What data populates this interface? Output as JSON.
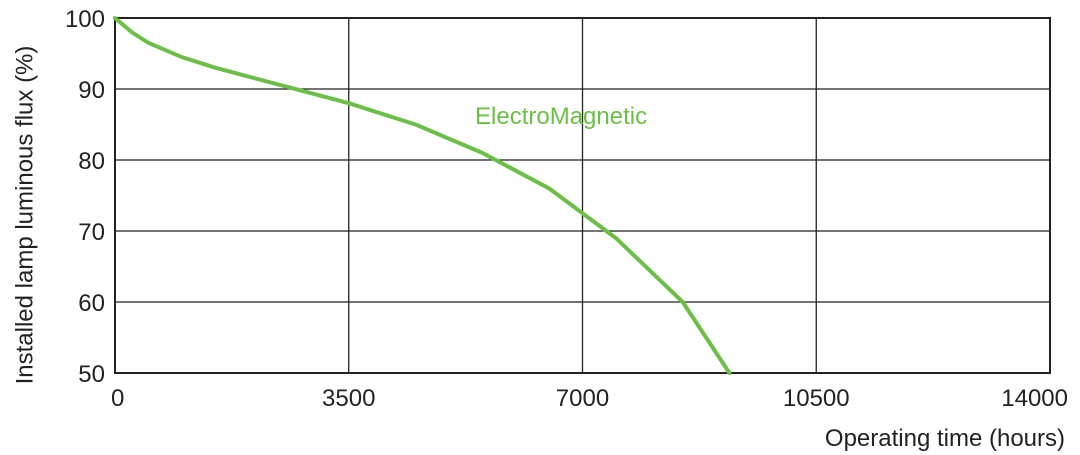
{
  "chart_data": {
    "type": "line",
    "xlabel": "Operating time (hours)",
    "ylabel": "Installed lamp luminous flux  (%)",
    "x": [
      0,
      250,
      500,
      1000,
      1500,
      2500,
      3500,
      4500,
      5500,
      6500,
      7500,
      8500,
      9200
    ],
    "series": [
      {
        "name": "ElectroMagnetic",
        "color": "#6cbf46",
        "values": [
          100,
          98,
          96.5,
          94.5,
          93,
          90.5,
          88,
          85,
          81,
          76,
          69,
          60,
          50
        ]
      }
    ],
    "xlim": [
      0,
      14000
    ],
    "xticks": [
      0,
      3500,
      7000,
      10500,
      14000
    ],
    "ylim": [
      50,
      100
    ],
    "yticks": [
      50,
      60,
      70,
      80,
      90,
      100
    ],
    "grid": true
  }
}
